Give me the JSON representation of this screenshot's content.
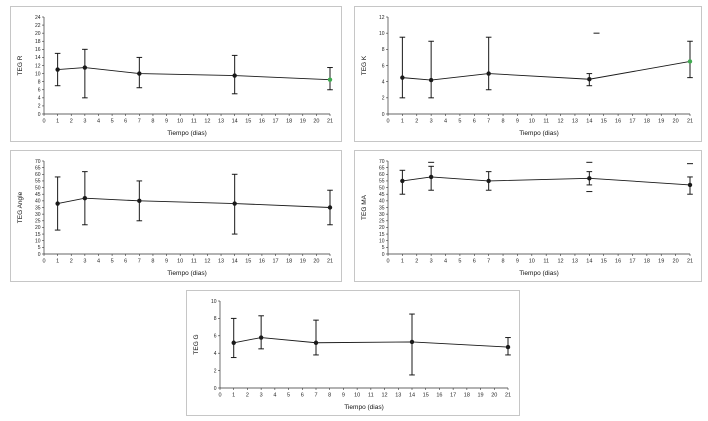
{
  "figure_title": "",
  "colors": {
    "point": "#1a1a1a",
    "line": "#1a1a1a",
    "highlight_point": "#3faa4f",
    "axis": "#333333",
    "panel_border": "#c6c6c6"
  },
  "chart_data": [
    {
      "id": "teg-r",
      "type": "line",
      "title": "",
      "ylabel": "TEG R",
      "xlabel": "Tiempo (dias)",
      "xmin": 0,
      "xmax": 21,
      "ymin": 0,
      "ymax": 24,
      "ystep": 2,
      "points": [
        {
          "x": 1,
          "y": 11,
          "lo": 7,
          "hi": 15
        },
        {
          "x": 3,
          "y": 11.5,
          "lo": 4,
          "hi": 16
        },
        {
          "x": 7,
          "y": 10,
          "lo": 6.5,
          "hi": 14
        },
        {
          "x": 14,
          "y": 9.5,
          "lo": 5,
          "hi": 14.5
        },
        {
          "x": 21,
          "y": 8.5,
          "lo": 6,
          "hi": 11.5,
          "color": "#3faa4f"
        }
      ],
      "outliers": []
    },
    {
      "id": "teg-k",
      "type": "line",
      "title": "",
      "ylabel": "TEG K",
      "xlabel": "Tiempo (dias)",
      "xmin": 0,
      "xmax": 21,
      "ymin": 0,
      "ymax": 12,
      "ystep": 2,
      "points": [
        {
          "x": 1,
          "y": 4.5,
          "lo": 2,
          "hi": 9.5
        },
        {
          "x": 3,
          "y": 4.2,
          "lo": 2,
          "hi": 9
        },
        {
          "x": 7,
          "y": 5,
          "lo": 3,
          "hi": 9.5
        },
        {
          "x": 14,
          "y": 4.3,
          "lo": 3.5,
          "hi": 5
        },
        {
          "x": 21,
          "y": 6.5,
          "lo": 4.5,
          "hi": 9,
          "color": "#3faa4f"
        }
      ],
      "outliers": [
        {
          "x": 14.5,
          "y": 10
        }
      ]
    },
    {
      "id": "teg-angle",
      "type": "line",
      "title": "",
      "ylabel": "TEG Angle",
      "xlabel": "Tiempo (dias)",
      "xmin": 0,
      "xmax": 21,
      "ymin": 0,
      "ymax": 70,
      "ystep": 5,
      "points": [
        {
          "x": 1,
          "y": 38,
          "lo": 18,
          "hi": 58
        },
        {
          "x": 3,
          "y": 42,
          "lo": 22,
          "hi": 62
        },
        {
          "x": 7,
          "y": 40,
          "lo": 25,
          "hi": 55
        },
        {
          "x": 14,
          "y": 38,
          "lo": 15,
          "hi": 60
        },
        {
          "x": 21,
          "y": 35,
          "lo": 22,
          "hi": 48
        }
      ],
      "outliers": []
    },
    {
      "id": "teg-ma",
      "type": "line",
      "title": "",
      "ylabel": "TEG MA",
      "xlabel": "Tiempo (dias)",
      "xmin": 0,
      "xmax": 21,
      "ymin": 0,
      "ymax": 70,
      "ystep": 5,
      "points": [
        {
          "x": 1,
          "y": 55,
          "lo": 45,
          "hi": 63
        },
        {
          "x": 3,
          "y": 58,
          "lo": 48,
          "hi": 66
        },
        {
          "x": 7,
          "y": 55,
          "lo": 48,
          "hi": 62
        },
        {
          "x": 14,
          "y": 57,
          "lo": 52,
          "hi": 62
        },
        {
          "x": 21,
          "y": 52,
          "lo": 45,
          "hi": 58
        }
      ],
      "outliers": [
        {
          "x": 3,
          "y": 69
        },
        {
          "x": 14,
          "y": 69
        },
        {
          "x": 14,
          "y": 47
        },
        {
          "x": 21,
          "y": 68
        }
      ]
    },
    {
      "id": "teg-g",
      "type": "line",
      "title": "",
      "ylabel": "TEG G",
      "xlabel": "Tiempo (dias)",
      "xmin": 0,
      "xmax": 21,
      "ymin": 0,
      "ymax": 10,
      "ystep": 2,
      "points": [
        {
          "x": 1,
          "y": 5.2,
          "lo": 3.5,
          "hi": 8
        },
        {
          "x": 3,
          "y": 5.8,
          "lo": 4.5,
          "hi": 8.3
        },
        {
          "x": 7,
          "y": 5.2,
          "lo": 3.8,
          "hi": 7.8
        },
        {
          "x": 14,
          "y": 5.3,
          "lo": 1.5,
          "hi": 8.5
        },
        {
          "x": 21,
          "y": 4.7,
          "lo": 3.8,
          "hi": 5.8
        }
      ],
      "outliers": []
    }
  ]
}
